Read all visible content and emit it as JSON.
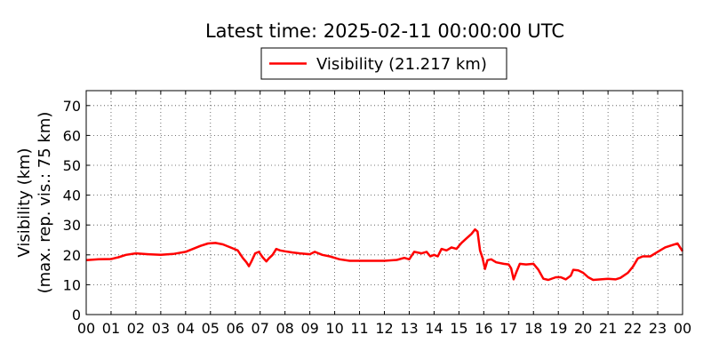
{
  "chart_data": {
    "type": "line",
    "title": "Latest time: 2025-02-11 00:00:00 UTC",
    "ylabel_lines": [
      "Visibility (km)",
      "(max. rep. vis.: 75 km)"
    ],
    "xlabel": "",
    "xlim": [
      0,
      24
    ],
    "ylim": [
      0,
      75
    ],
    "grid": true,
    "legend_position": "top-center",
    "x_ticks": [
      0,
      1,
      2,
      3,
      4,
      5,
      6,
      7,
      8,
      9,
      10,
      11,
      12,
      13,
      14,
      15,
      16,
      17,
      18,
      19,
      20,
      21,
      22,
      23,
      24
    ],
    "x_tick_labels": [
      "00",
      "01",
      "02",
      "03",
      "04",
      "05",
      "06",
      "07",
      "08",
      "09",
      "10",
      "11",
      "12",
      "13",
      "14",
      "15",
      "16",
      "17",
      "18",
      "19",
      "20",
      "21",
      "22",
      "23",
      "00"
    ],
    "y_ticks": [
      0,
      10,
      20,
      30,
      40,
      50,
      60,
      70
    ],
    "y_tick_labels": [
      "0",
      "10",
      "20",
      "30",
      "40",
      "50",
      "60",
      "70"
    ],
    "series": [
      {
        "name": "Visibility (21.217 km)",
        "color": "#ff0000",
        "points": [
          [
            0,
            18.2
          ],
          [
            0.5,
            18.5
          ],
          [
            1,
            18.6
          ],
          [
            1.3,
            19.2
          ],
          [
            1.6,
            20.0
          ],
          [
            2,
            20.5
          ],
          [
            2.5,
            20.2
          ],
          [
            3,
            20.0
          ],
          [
            3.5,
            20.3
          ],
          [
            4,
            21.0
          ],
          [
            4.3,
            22.0
          ],
          [
            4.6,
            23.0
          ],
          [
            4.9,
            23.8
          ],
          [
            5.2,
            24.0
          ],
          [
            5.5,
            23.5
          ],
          [
            5.8,
            22.5
          ],
          [
            6.1,
            21.5
          ],
          [
            6.3,
            19.0
          ],
          [
            6.45,
            17.5
          ],
          [
            6.55,
            16.2
          ],
          [
            6.65,
            17.8
          ],
          [
            6.8,
            20.5
          ],
          [
            6.95,
            21.0
          ],
          [
            7.1,
            19.2
          ],
          [
            7.25,
            17.8
          ],
          [
            7.35,
            18.8
          ],
          [
            7.5,
            20.0
          ],
          [
            7.65,
            22.0
          ],
          [
            7.8,
            21.5
          ],
          [
            8.0,
            21.2
          ],
          [
            8.3,
            20.8
          ],
          [
            8.6,
            20.5
          ],
          [
            9.0,
            20.2
          ],
          [
            9.2,
            21.0
          ],
          [
            9.5,
            20.0
          ],
          [
            9.8,
            19.5
          ],
          [
            10.2,
            18.5
          ],
          [
            10.6,
            18.0
          ],
          [
            11.0,
            18.0
          ],
          [
            11.5,
            18.0
          ],
          [
            12.0,
            18.0
          ],
          [
            12.5,
            18.3
          ],
          [
            12.8,
            19.0
          ],
          [
            13.0,
            18.5
          ],
          [
            13.2,
            21.0
          ],
          [
            13.5,
            20.5
          ],
          [
            13.7,
            21.0
          ],
          [
            13.85,
            19.5
          ],
          [
            14.0,
            20.0
          ],
          [
            14.15,
            19.5
          ],
          [
            14.3,
            22.0
          ],
          [
            14.5,
            21.5
          ],
          [
            14.7,
            22.5
          ],
          [
            14.9,
            22.0
          ],
          [
            15.1,
            24.0
          ],
          [
            15.3,
            25.5
          ],
          [
            15.5,
            27.0
          ],
          [
            15.65,
            28.5
          ],
          [
            15.75,
            27.8
          ],
          [
            15.85,
            21.5
          ],
          [
            15.95,
            19.0
          ],
          [
            16.05,
            15.3
          ],
          [
            16.15,
            18.2
          ],
          [
            16.3,
            18.5
          ],
          [
            16.5,
            17.5
          ],
          [
            16.8,
            17.0
          ],
          [
            17.0,
            16.8
          ],
          [
            17.1,
            15.5
          ],
          [
            17.2,
            11.8
          ],
          [
            17.3,
            14.0
          ],
          [
            17.45,
            17.0
          ],
          [
            17.7,
            16.8
          ],
          [
            18.0,
            17.0
          ],
          [
            18.2,
            15.0
          ],
          [
            18.4,
            12.0
          ],
          [
            18.6,
            11.6
          ],
          [
            18.9,
            12.5
          ],
          [
            19.1,
            12.5
          ],
          [
            19.3,
            11.8
          ],
          [
            19.5,
            13.0
          ],
          [
            19.6,
            15.0
          ],
          [
            19.8,
            14.8
          ],
          [
            20.0,
            14.0
          ],
          [
            20.2,
            12.5
          ],
          [
            20.4,
            11.6
          ],
          [
            20.7,
            11.8
          ],
          [
            21.0,
            12.0
          ],
          [
            21.3,
            11.8
          ],
          [
            21.5,
            12.3
          ],
          [
            21.8,
            14.0
          ],
          [
            22.0,
            16.0
          ],
          [
            22.2,
            18.8
          ],
          [
            22.4,
            19.5
          ],
          [
            22.7,
            19.5
          ],
          [
            23.0,
            21.0
          ],
          [
            23.3,
            22.5
          ],
          [
            23.6,
            23.3
          ],
          [
            23.8,
            23.8
          ],
          [
            23.9,
            22.5
          ],
          [
            24.0,
            21.217
          ]
        ]
      }
    ]
  }
}
